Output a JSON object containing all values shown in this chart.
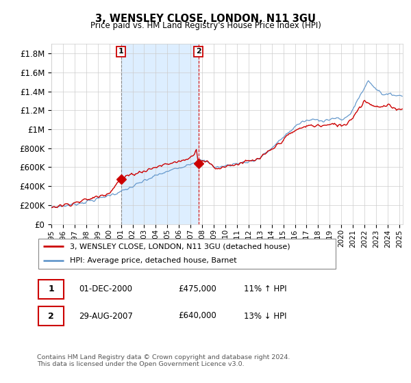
{
  "title": "3, WENSLEY CLOSE, LONDON, N11 3GU",
  "subtitle": "Price paid vs. HM Land Registry's House Price Index (HPI)",
  "legend_line1": "3, WENSLEY CLOSE, LONDON, N11 3GU (detached house)",
  "legend_line2": "HPI: Average price, detached house, Barnet",
  "annotation1_date": "01-DEC-2000",
  "annotation1_price": "£475,000",
  "annotation1_hpi": "11% ↑ HPI",
  "annotation2_date": "29-AUG-2007",
  "annotation2_price": "£640,000",
  "annotation2_hpi": "13% ↓ HPI",
  "footer": "Contains HM Land Registry data © Crown copyright and database right 2024.\nThis data is licensed under the Open Government Licence v3.0.",
  "hpi_color": "#6699cc",
  "price_color": "#cc0000",
  "shade_color": "#ddeeff",
  "ylim": [
    0,
    1900000
  ],
  "yticks": [
    0,
    200000,
    400000,
    600000,
    800000,
    1000000,
    1200000,
    1400000,
    1600000,
    1800000
  ],
  "ytick_labels": [
    "£0",
    "£200K",
    "£400K",
    "£600K",
    "£800K",
    "£1M",
    "£1.2M",
    "£1.4M",
    "£1.6M",
    "£1.8M"
  ],
  "sale1_x": 2001.0,
  "sale1_y": 475000,
  "sale2_x": 2007.67,
  "sale2_y": 640000,
  "vline1_x": 2001.0,
  "vline2_x": 2007.67,
  "xmin": 1995.0,
  "xmax": 2025.3
}
